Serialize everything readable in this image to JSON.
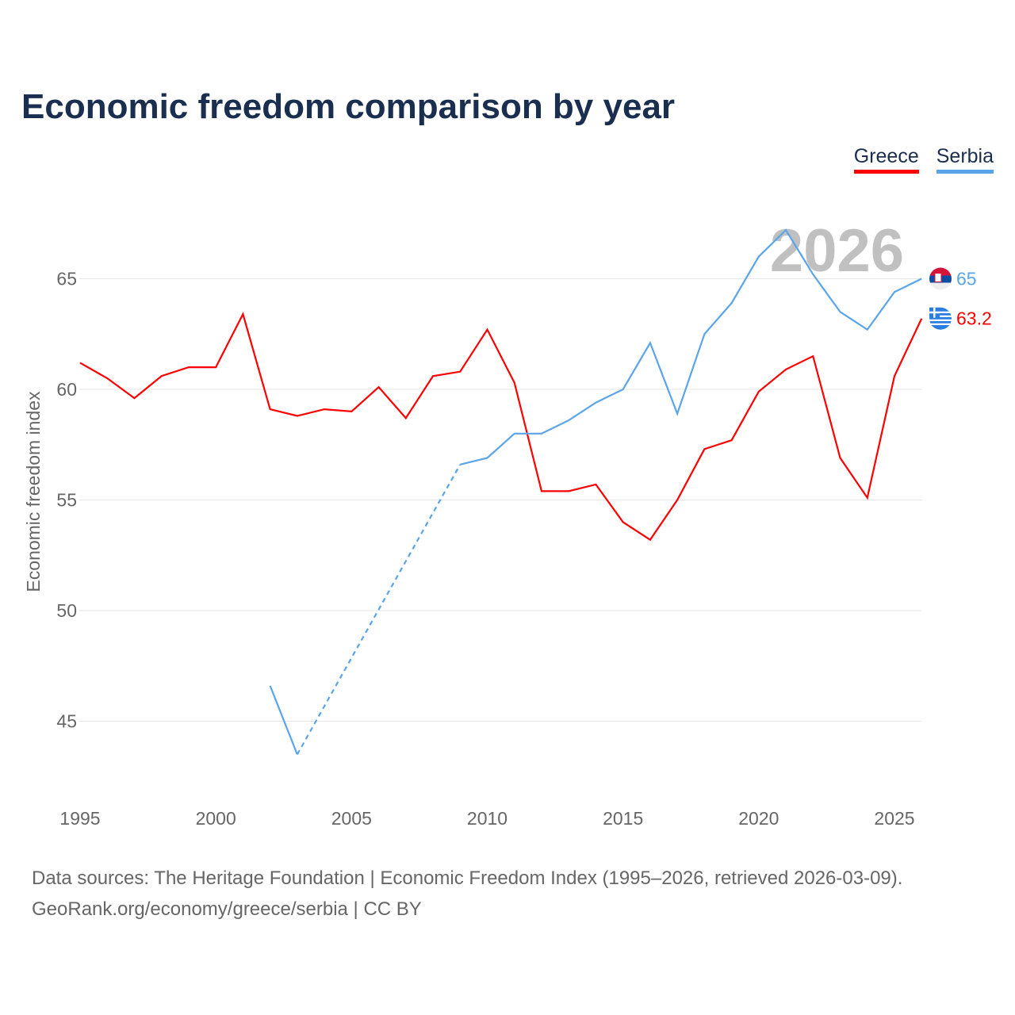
{
  "chart_data": {
    "type": "line",
    "title": "Economic freedom comparison by year",
    "xlabel": "",
    "ylabel": "Economic freedom index",
    "xlim": [
      1995,
      2026
    ],
    "ylim": [
      42,
      68
    ],
    "x_ticks": [
      1995,
      2000,
      2005,
      2010,
      2015,
      2020,
      2025
    ],
    "y_ticks": [
      45,
      50,
      55,
      60,
      65
    ],
    "grid": true,
    "legend_position": "top-right",
    "year_watermark": "2026",
    "x": [
      1995,
      1996,
      1997,
      1998,
      1999,
      2000,
      2001,
      2002,
      2003,
      2004,
      2005,
      2006,
      2007,
      2008,
      2009,
      2010,
      2011,
      2012,
      2013,
      2014,
      2015,
      2016,
      2017,
      2018,
      2019,
      2020,
      2021,
      2022,
      2023,
      2024,
      2025,
      2026
    ],
    "series": [
      {
        "name": "Greece",
        "color": "#ff0000",
        "end_label": "63.2",
        "flag": "greece-flag",
        "values": [
          61.2,
          60.5,
          59.6,
          60.6,
          61.0,
          61.0,
          63.4,
          59.1,
          58.8,
          59.1,
          59.0,
          60.1,
          58.7,
          60.6,
          60.8,
          62.7,
          60.3,
          55.4,
          55.4,
          55.7,
          54.0,
          53.2,
          55.0,
          57.3,
          57.7,
          59.9,
          60.9,
          61.5,
          56.9,
          55.1,
          60.6,
          63.2
        ]
      },
      {
        "name": "Serbia",
        "color": "#5aa5ea",
        "end_label": "65",
        "flag": "serbia-flag",
        "values": [
          null,
          null,
          null,
          null,
          null,
          null,
          null,
          46.6,
          43.5,
          null,
          null,
          null,
          null,
          null,
          56.6,
          56.9,
          58.0,
          58.0,
          58.6,
          59.4,
          60.0,
          62.1,
          58.9,
          62.5,
          63.9,
          66.0,
          67.2,
          65.2,
          63.5,
          62.7,
          64.4,
          65.0
        ]
      }
    ]
  },
  "footer": {
    "sources": "Data sources: The Heritage Foundation | Economic Freedom Index (1995–2026, retrieved 2026-03-09).",
    "credit": "GeoRank.org/economy/greece/serbia | CC BY"
  }
}
